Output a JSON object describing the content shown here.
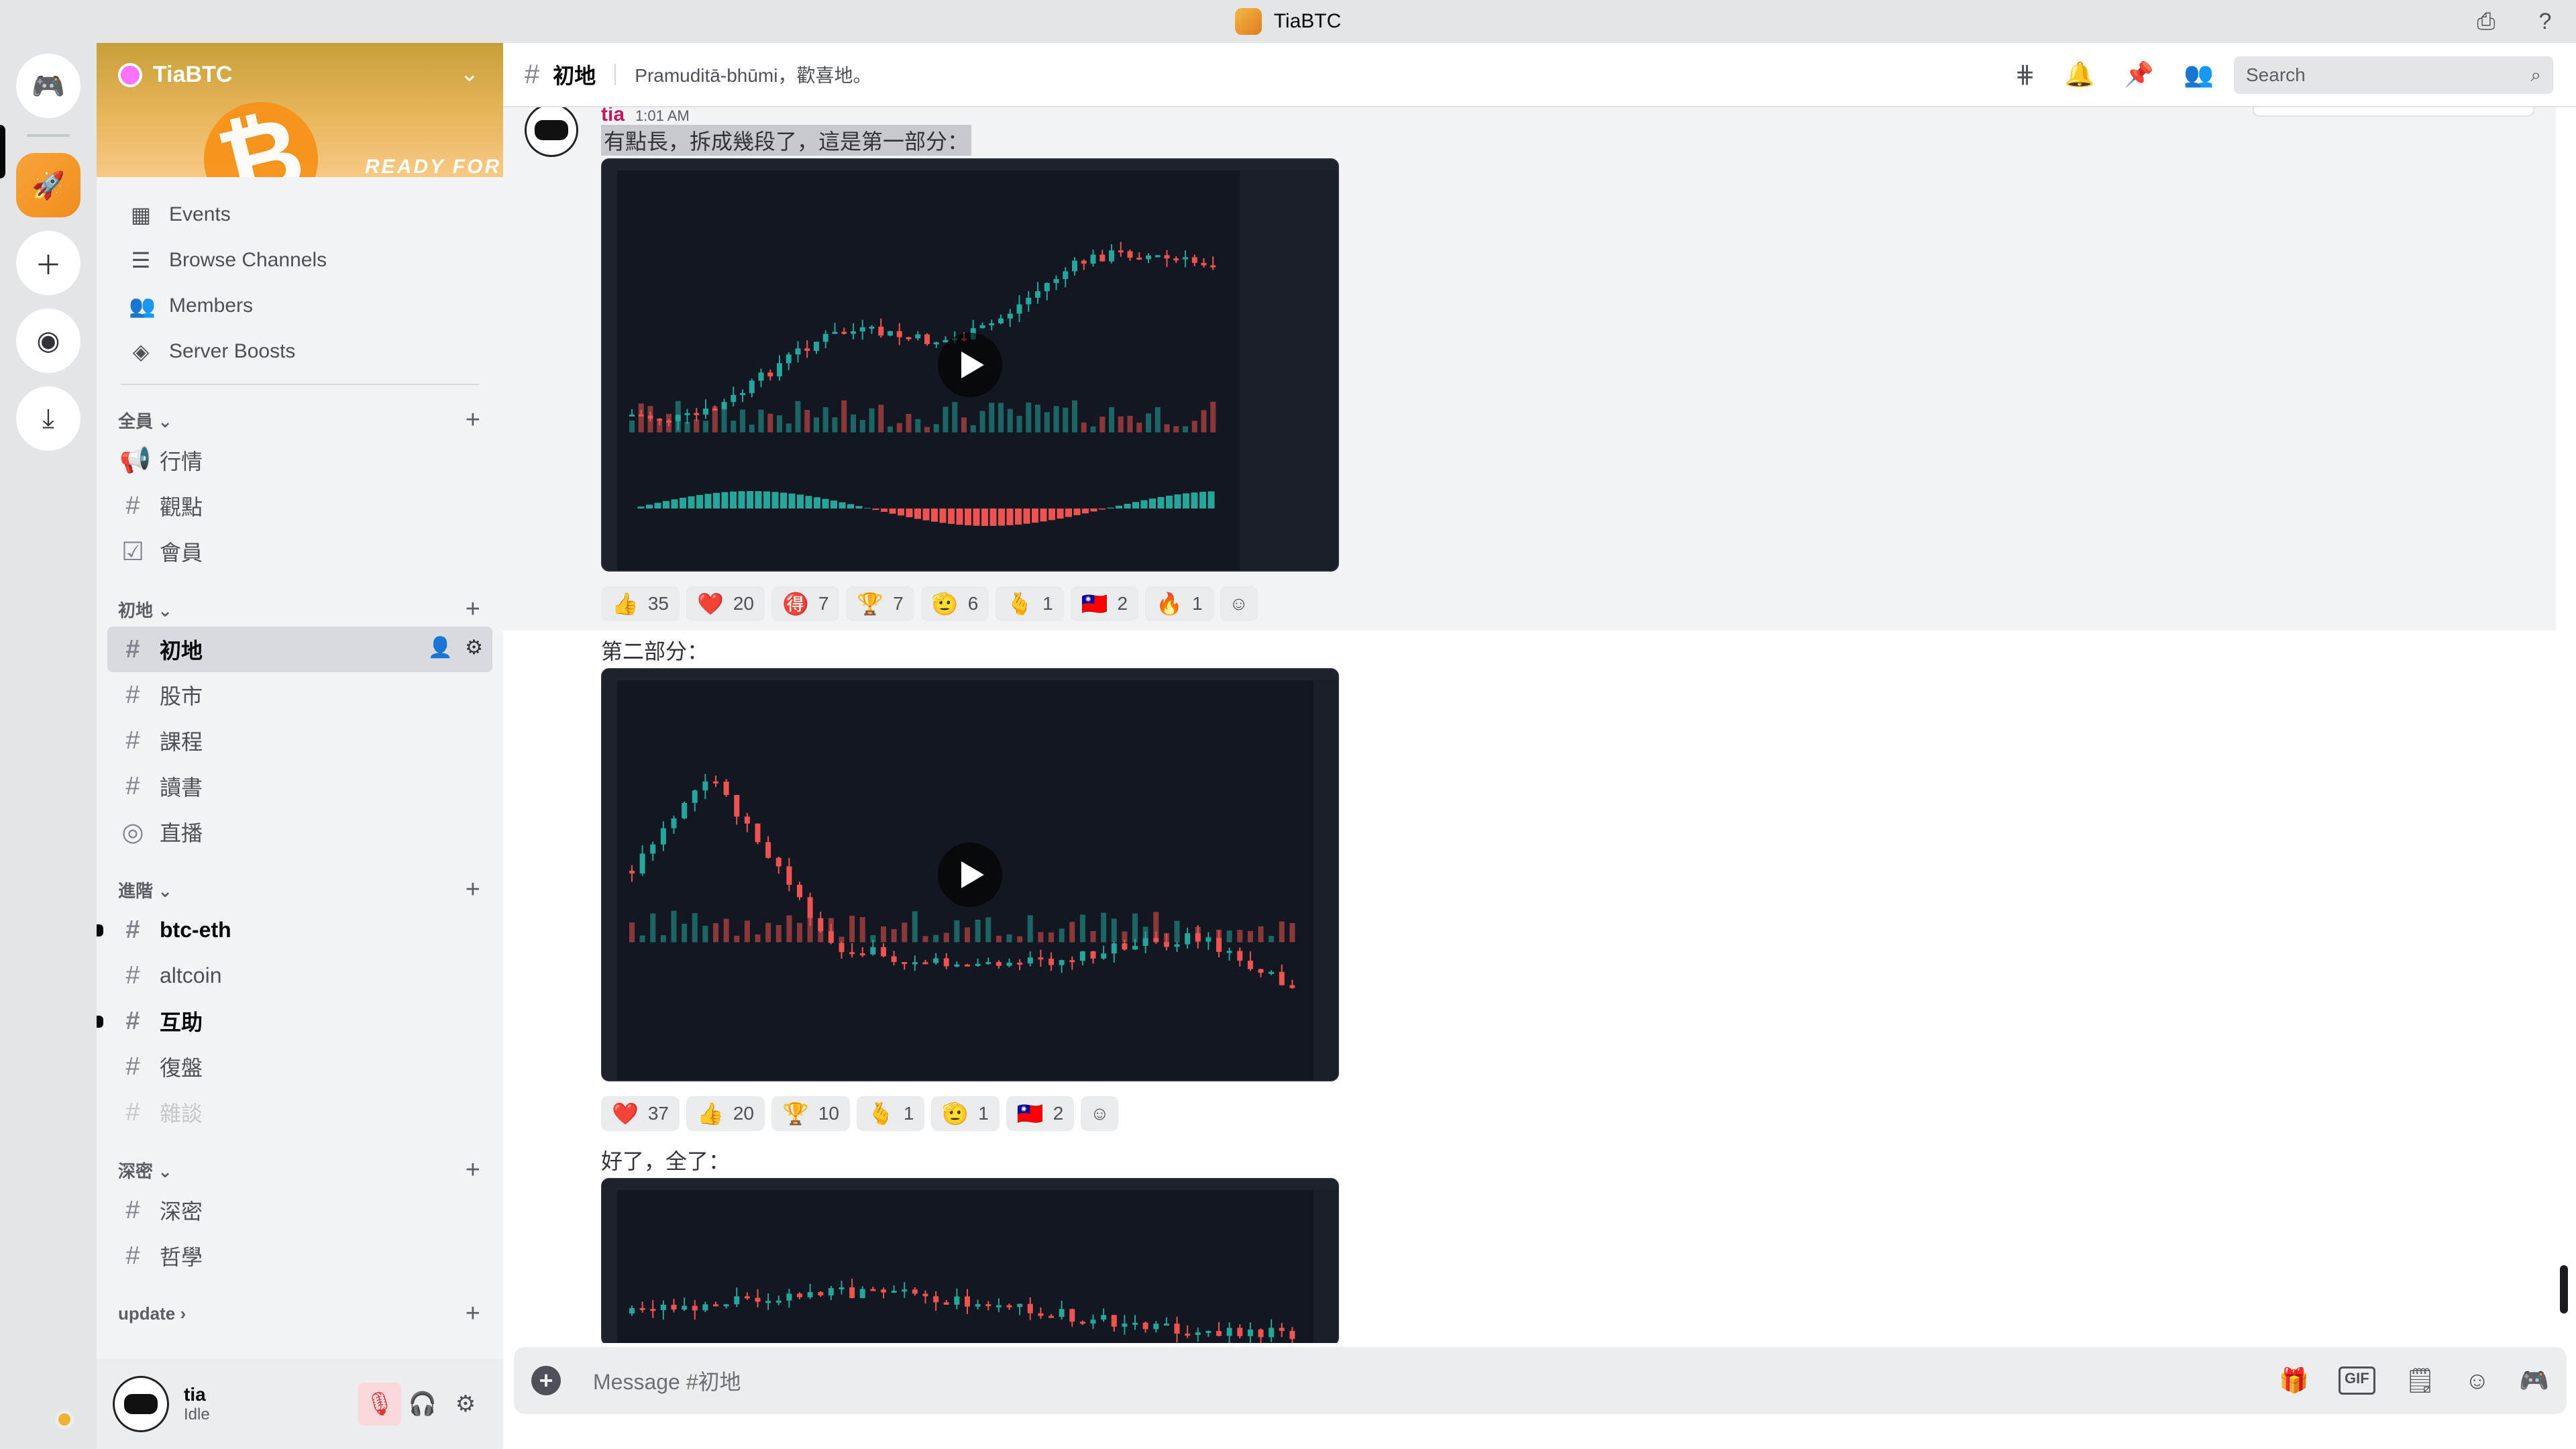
{
  "window": {
    "title": "TiaBTC"
  },
  "server": {
    "name": "TiaBTC",
    "banner_tag": "READY FOR LONG"
  },
  "nav": [
    {
      "label": "Events",
      "icon": "calendar-icon"
    },
    {
      "label": "Browse Channels",
      "icon": "browse-icon"
    },
    {
      "label": "Members",
      "icon": "members-icon"
    },
    {
      "label": "Server Boosts",
      "icon": "boost-icon"
    }
  ],
  "categories": [
    {
      "name": "全員",
      "channels": [
        {
          "name": "行情",
          "icon": "announcement-icon"
        },
        {
          "name": "觀點",
          "icon": "hash-icon"
        },
        {
          "name": "會員",
          "icon": "checklist-icon"
        }
      ]
    },
    {
      "name": "初地",
      "channels": [
        {
          "name": "初地",
          "icon": "hash-icon",
          "active": true
        },
        {
          "name": "股市",
          "icon": "hash-icon"
        },
        {
          "name": "課程",
          "icon": "hash-icon"
        },
        {
          "name": "讀書",
          "icon": "hash-icon"
        },
        {
          "name": "直播",
          "icon": "stage-icon"
        }
      ]
    },
    {
      "name": "進階",
      "channels": [
        {
          "name": "btc-eth",
          "icon": "hash-icon",
          "unread": true
        },
        {
          "name": "altcoin",
          "icon": "hash-icon"
        },
        {
          "name": "互助",
          "icon": "hash-icon",
          "unread": true
        },
        {
          "name": "復盤",
          "icon": "hash-icon"
        },
        {
          "name": "雜談",
          "icon": "hash-icon",
          "muted": true
        }
      ]
    },
    {
      "name": "深密",
      "channels": [
        {
          "name": "深密",
          "icon": "hash-icon"
        },
        {
          "name": "哲學",
          "icon": "hash-icon"
        }
      ]
    },
    {
      "name": "update",
      "channels": []
    }
  ],
  "user": {
    "name": "tia",
    "status": "Idle"
  },
  "header": {
    "channel": "初地",
    "topic": "Pramuditā-bhūmi，歡喜地。",
    "search_placeholder": "Search"
  },
  "message": {
    "author": "tia",
    "time": "1:01 AM",
    "text1": "有點長，拆成幾段了，這是第一部分：",
    "text2": "第二部分：",
    "text3": "好了，全了："
  },
  "reactions1": [
    {
      "emoji": "👍",
      "count": "35"
    },
    {
      "emoji": "❤️",
      "count": "20"
    },
    {
      "emoji": "🉐",
      "count": "7"
    },
    {
      "emoji": "🏆",
      "count": "7"
    },
    {
      "emoji": "🫡",
      "count": "6"
    },
    {
      "emoji": "🫰",
      "count": "1"
    },
    {
      "emoji": "🇹🇼",
      "count": "2"
    },
    {
      "emoji": "🔥",
      "count": "1"
    }
  ],
  "reactions2": [
    {
      "emoji": "❤️",
      "count": "37"
    },
    {
      "emoji": "👍",
      "count": "20"
    },
    {
      "emoji": "🏆",
      "count": "10"
    },
    {
      "emoji": "🫰",
      "count": "1"
    },
    {
      "emoji": "🫡",
      "count": "1"
    },
    {
      "emoji": "🇹🇼",
      "count": "2"
    }
  ],
  "composer": {
    "placeholder": "Message #初地"
  },
  "colors": {
    "accent": "#5865f2",
    "author": "#c2185b",
    "idle": "#f0b232",
    "bull": "#26a69a",
    "bear": "#ef5350"
  }
}
